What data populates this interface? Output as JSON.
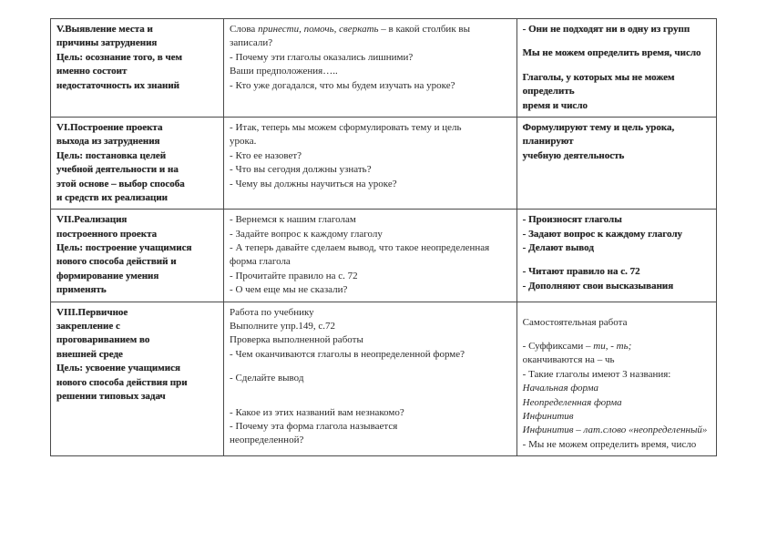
{
  "cell_v_lead": "V.Выявление места и",
  "cell_v_l2": "причины затруднения",
  "cell_v_goal_pre": "Цель: ",
  "cell_v_goal_rest": "осознание того, в чем",
  "cell_v_l4": "именно состоит",
  "cell_v_l5": "недостаточность их знаний",
  "cell_v2_pre": "Слова ",
  "cell_v2_i": "принести, помочь, сверкать",
  "cell_v2_post": " – в какой столбик вы",
  "cell_v2_l2": "записали?",
  "cell_v2_l3": "- Почему эти глаголы оказались лишними?",
  "cell_v2_l4": "Ваши предположения…..",
  "cell_v2_l5": "- Кто уже догадался, что мы будем изучать на уроке?",
  "cell_v3_l1": "- Они не подходят ни в одну из групп",
  "cell_v3_l3": "Мы не можем определить время, число",
  "cell_v3_l5": "Глаголы, у которых мы не можем определить",
  "cell_v3_l6": "время и число",
  "cell_vi_lead": "VI.Построение проекта",
  "cell_vi_l2": "выхода из затруднения",
  "cell_vi_goal_pre": "Цель: ",
  "cell_vi_goal_rest": "постановка целей",
  "cell_vi_l4": "учебной деятельности и на",
  "cell_vi_l5": "этой основе – выбор способа",
  "cell_vi_l6": "и средств их реализации",
  "cell_vi2_l1": "- Итак, теперь мы можем сформулировать тему и цель",
  "cell_vi2_l2": "урока.",
  "cell_vi2_l3": "- Кто ее назовет?",
  "cell_vi2_l4": "- Что вы сегодня должны узнать?",
  "cell_vi2_l5": "- Чему вы должны научиться на уроке?",
  "cell_vi3_l1": "Формулируют тему и цель урока, планируют",
  "cell_vi3_l2": "учебную деятельность",
  "cell_vii_lead": "VII.Реализация",
  "cell_vii_l2": "построенного проекта",
  "cell_vii_goal_pre": "Цель: ",
  "cell_vii_goal_rest": "построение учащимися",
  "cell_vii_l4": "нового способа действий и",
  "cell_vii_l5": "формирование умения",
  "cell_vii_l6": "применять",
  "cell_vii2_l1": "- Вернемся к нашим глаголам",
  "cell_vii2_l2": "- Задайте вопрос к каждому глаголу",
  "cell_vii2_l3": "- А теперь давайте сделаем вывод, что такое неопределенная",
  "cell_vii2_l4": "форма глагола",
  "cell_vii2_l5": "- Прочитайте правило на с. 72",
  "cell_vii2_l6": "- О чем еще мы не сказали?",
  "cell_vii3_l1": "- Произносят глаголы",
  "cell_vii3_l2": "- Задают вопрос к каждому глаголу",
  "cell_vii3_l3": "- Делают вывод",
  "cell_vii3_l5": "- Читают правило на с. 72",
  "cell_vii3_l6": "- Дополняют свои высказывания",
  "cell_viii_lead": "VIII.Первичное",
  "cell_viii_l2": "закрепление с",
  "cell_viii_l3": "проговариванием во",
  "cell_viii_l4": "внешней среде",
  "cell_viii_goal_pre": "Цель: ",
  "cell_viii_goal_rest": "усвоение учащимися",
  "cell_viii_l6": "нового способа действия при",
  "cell_viii_l7": "решении типовых задач",
  "cell_viii2_l1": "Работа по учебнику",
  "cell_viii2_l2": "Выполните упр.149, с.72",
  "cell_viii2_l3": "Проверка выполненной работы",
  "cell_viii2_l4": "- Чем оканчиваются глаголы в неопределенной форме?",
  "cell_viii2_l6": "- Сделайте вывод",
  "cell_viii2_l9": "- Какое из этих названий вам незнакомо?",
  "cell_viii2_l10": "- Почему эта форма глагола называется",
  "cell_viii2_l11": "неопределенной?",
  "cell_viii3_l2": "Самостоятельная работа",
  "cell_viii3_l4_pre": "- Суффиксами – ",
  "cell_viii3_l4_i": "ти, - ть;",
  "cell_viii3_l5": "оканчиваются на – чь",
  "cell_viii3_l6": "- Такие глаголы имеют 3 названия:",
  "cell_viii3_l7": "Начальная форма",
  "cell_viii3_l8": "Неопределенная форма",
  "cell_viii3_l9": "Инфинитив",
  "cell_viii3_l10": "Инфинитив – лат.слово «неопределенный»",
  "cell_viii3_l11": "- Мы не можем определить время, число"
}
